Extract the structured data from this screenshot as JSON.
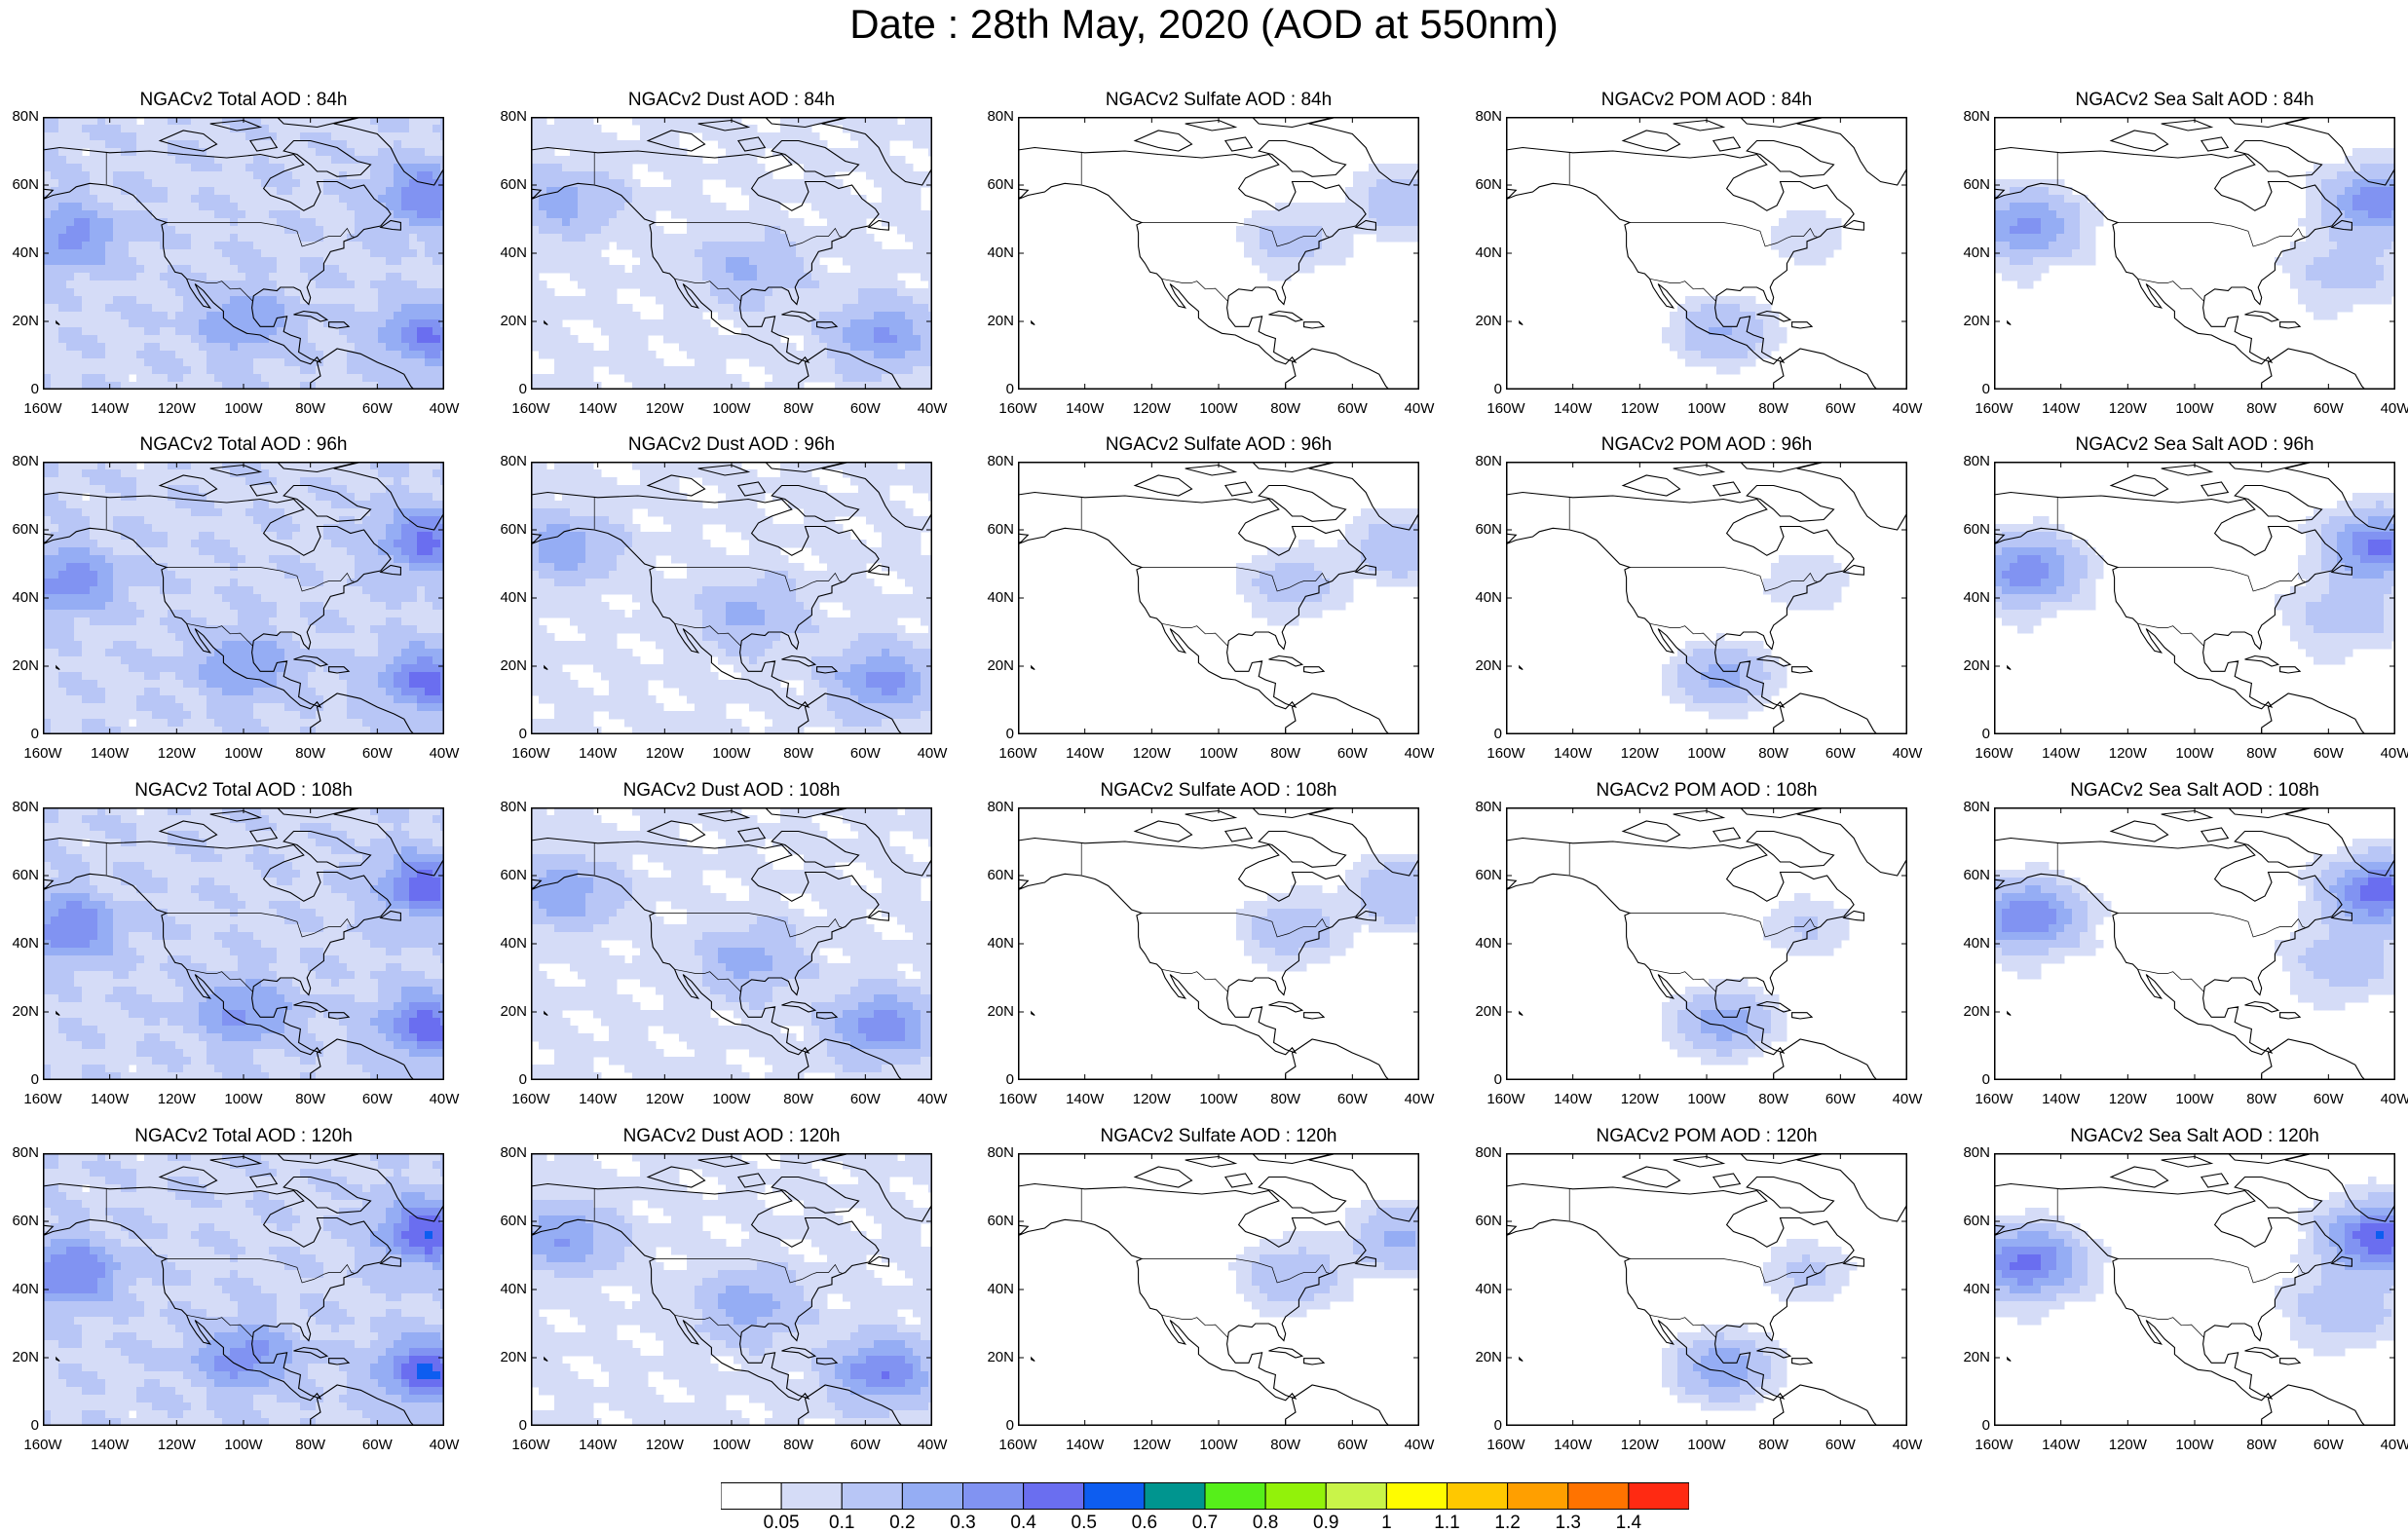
{
  "title": "Date : 28th May, 2020 (AOD at 550nm)",
  "columns": [
    {
      "key": "total",
      "label": "Total AOD"
    },
    {
      "key": "dust",
      "label": "Dust AOD"
    },
    {
      "key": "sulfate",
      "label": "Sulfate AOD"
    },
    {
      "key": "pom",
      "label": "POM AOD"
    },
    {
      "key": "seasalt",
      "label": "Sea Salt AOD"
    }
  ],
  "rows": [
    "84h",
    "96h",
    "108h",
    "120h"
  ],
  "panels": [
    [
      "NGACv2 Total AOD : 84h",
      "NGACv2 Dust AOD : 84h",
      "NGACv2 Sulfate AOD : 84h",
      "NGACv2 POM AOD : 84h",
      "NGACv2 Sea Salt AOD : 84h"
    ],
    [
      "NGACv2 Total AOD : 96h",
      "NGACv2 Dust AOD : 96h",
      "NGACv2 Sulfate AOD : 96h",
      "NGACv2 POM AOD : 96h",
      "NGACv2 Sea Salt AOD : 96h"
    ],
    [
      "NGACv2 Total AOD : 108h",
      "NGACv2 Dust AOD : 108h",
      "NGACv2 Sulfate AOD : 108h",
      "NGACv2 POM AOD : 108h",
      "NGACv2 Sea Salt AOD : 108h"
    ],
    [
      "NGACv2 Total AOD : 120h",
      "NGACv2 Dust AOD : 120h",
      "NGACv2 Sulfate AOD : 120h",
      "NGACv2 POM AOD : 120h",
      "NGACv2 Sea Salt  AOD : 120h"
    ]
  ],
  "lat_ticks": [
    "80N",
    "60N",
    "40N",
    "20N",
    "0"
  ],
  "lat_values": [
    80,
    60,
    40,
    20,
    0
  ],
  "lon_ticks": [
    "160W",
    "140W",
    "120W",
    "100W",
    "80W",
    "60W",
    "40W"
  ],
  "lon_values": [
    -160,
    -140,
    -120,
    -100,
    -80,
    -60,
    -40
  ],
  "extent": {
    "lon": [
      -160,
      -40
    ],
    "lat": [
      0,
      80
    ]
  },
  "colorbar": {
    "levels": [
      "0.05",
      "0.1",
      "0.2",
      "0.3",
      "0.4",
      "0.5",
      "0.6",
      "0.7",
      "0.8",
      "0.9",
      "1",
      "1.1",
      "1.2",
      "1.3",
      "1.4"
    ],
    "colors": [
      "#ffffff",
      "#d5dcf7",
      "#b8c6f6",
      "#95adf4",
      "#8193f2",
      "#6a6ef0",
      "#0d5df0",
      "#00958f",
      "#56ef1a",
      "#92f20a",
      "#c9f449",
      "#fffc00",
      "#ffc800",
      "#ff9f00",
      "#ff7300",
      "#ff2a12"
    ]
  },
  "levels_in_panels": {
    "total": {
      "base": 0.09,
      "features": [
        [
          -152,
          45,
          0.25
        ],
        [
          -45,
          16,
          0.3
        ],
        [
          -45,
          57,
          0.3
        ],
        [
          -100,
          20,
          0.2
        ]
      ]
    },
    "dust": {
      "base": 0.06,
      "features": [
        [
          -150,
          55,
          0.18
        ],
        [
          -55,
          16,
          0.25
        ],
        [
          -95,
          35,
          0.15
        ]
      ]
    },
    "sulfate": {
      "base": 0.02,
      "features": [
        [
          -78,
          44,
          0.12
        ],
        [
          -45,
          55,
          0.15
        ]
      ]
    },
    "pom": {
      "base": 0.01,
      "features": [
        [
          -95,
          17,
          0.2
        ],
        [
          -70,
          45,
          0.08
        ]
      ]
    },
    "seasalt": {
      "base": 0.03,
      "features": [
        [
          -150,
          48,
          0.3
        ],
        [
          -45,
          55,
          0.35
        ],
        [
          -55,
          35,
          0.12
        ]
      ]
    }
  }
}
